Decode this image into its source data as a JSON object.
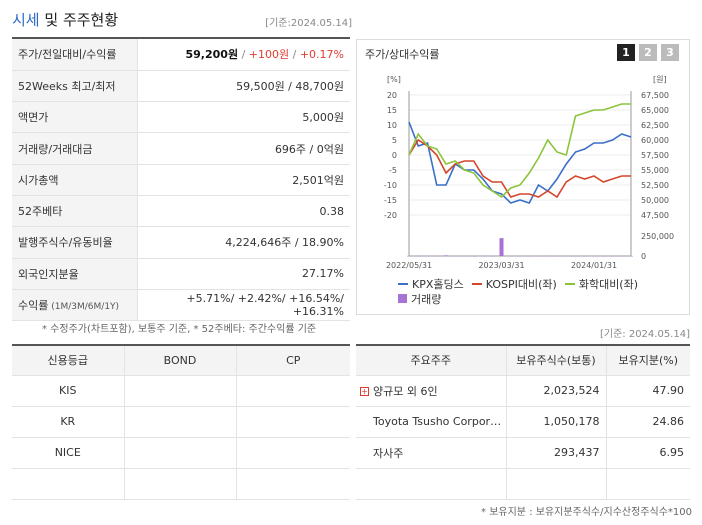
{
  "header": {
    "title_accent": "시세",
    "title_rest": " 및 주주현황",
    "date": "[기준:2024.05.14]"
  },
  "stats": [
    {
      "label": "주가/전일대비/수익률",
      "v1": "59,200원",
      "sep1": " / ",
      "v2": "+100원",
      "sep2": " / ",
      "v3": "+0.17%"
    },
    {
      "label": "52Weeks 최고/최저",
      "value": "59,500원 / 48,700원"
    },
    {
      "label": "액면가",
      "value": "5,000원"
    },
    {
      "label": "거래량/거래대금",
      "value": "696주 / 0억원"
    },
    {
      "label": "시가총액",
      "value": "2,501억원"
    },
    {
      "label": "52주베타",
      "value": "0.38"
    },
    {
      "label": "발행주식수/유동비율",
      "value": "4,224,646주 / 18.90%"
    },
    {
      "label": "외국인지분율",
      "value": "27.17%"
    },
    {
      "label": "수익률",
      "label_small": " (1M/3M/6M/1Y)",
      "value": "+5.71%/ +2.42%/ +16.54%/ +16.31%"
    }
  ],
  "notes": {
    "note1": "* 수정주가(차트포함), 보통주 기준, * 52주베타: 주간수익률 기준",
    "date2": "[기준: 2024.05.14]",
    "note3": "* 보유지분 : 보유지분주식수/지수산정주식수*100"
  },
  "chart_panel": {
    "title": "주가/상대수익률",
    "pages": [
      "1",
      "2",
      "3"
    ]
  },
  "chart_data": {
    "type": "line",
    "x": [
      "2022/05",
      "2022/06",
      "2022/07",
      "2022/08",
      "2022/09",
      "2022/10",
      "2022/11",
      "2022/12",
      "2023/01",
      "2023/02",
      "2023/03",
      "2023/04",
      "2023/05",
      "2023/06",
      "2023/07",
      "2023/08",
      "2023/09",
      "2023/10",
      "2023/11",
      "2023/12",
      "2024/01",
      "2024/02",
      "2024/03",
      "2024/04",
      "2024/05"
    ],
    "x_ticks": [
      "2022/05/31",
      "2023/03/31",
      "2024/01/31"
    ],
    "left_axis": {
      "unit": "[%]",
      "ylim": [
        -20,
        20
      ],
      "ticks": [
        "20",
        "15",
        "10",
        "5",
        "0",
        "-5",
        "-10",
        "-15",
        "-20"
      ]
    },
    "right_axis": {
      "unit": "[원]",
      "ylim": [
        47500,
        67500
      ],
      "ticks": [
        "67,500",
        "65,000",
        "62,500",
        "60,000",
        "57,500",
        "55,000",
        "52,500",
        "50,000",
        "47,500"
      ]
    },
    "volume_axis": {
      "ticks": [
        "250,000",
        "0"
      ],
      "ylim": [
        0,
        320000
      ]
    },
    "series": [
      {
        "name": "KPX홀딩스",
        "color": "#3a6fc9",
        "values": [
          11,
          3,
          4,
          -10,
          -10,
          -3,
          -5,
          -5,
          -8,
          -12,
          -13,
          -16,
          -15,
          -16,
          -10,
          -12,
          -8,
          -3,
          1,
          2,
          4,
          4,
          5,
          7,
          6
        ]
      },
      {
        "name": "KOSPI대비(좌)",
        "color": "#d4462b",
        "values": [
          0,
          5,
          3,
          0,
          -6,
          -3,
          -2,
          -2,
          -7,
          -9,
          -9,
          -14,
          -13,
          -13,
          -14,
          -12,
          -14,
          -9,
          -7,
          -8,
          -7,
          -9,
          -8,
          -7,
          -7
        ]
      },
      {
        "name": "화학대비(좌)",
        "color": "#8cc43a",
        "values": [
          0,
          7,
          3,
          2,
          -3,
          -2,
          -5,
          -6,
          -10,
          -12,
          -14,
          -11,
          -10,
          -6,
          -1,
          5,
          1,
          0,
          13,
          14,
          15,
          15,
          16,
          17,
          17
        ]
      }
    ],
    "volume": {
      "name": "거래량",
      "color": "#a773d4",
      "values": [
        2000,
        3000,
        1500,
        1000,
        8000,
        2000,
        1000,
        1500,
        3000,
        1000,
        220000,
        2000,
        1500,
        1000,
        1000,
        2000,
        1000,
        1500,
        1000,
        1000,
        1500,
        1000,
        2000,
        1000,
        1500
      ]
    }
  },
  "credit_table": {
    "headers": [
      "신용등급",
      "BOND",
      "CP"
    ],
    "rows": [
      [
        "KIS",
        "",
        ""
      ],
      [
        "KR",
        "",
        ""
      ],
      [
        "NICE",
        "",
        ""
      ],
      [
        "",
        "",
        ""
      ]
    ]
  },
  "holders_table": {
    "headers": [
      "주요주주",
      "보유주식수(보통)",
      "보유지분(%)"
    ],
    "rows": [
      {
        "name": "양규모 외 6인",
        "shares": "2,023,524",
        "pct": "47.90",
        "expand": "+"
      },
      {
        "name": "Toyota Tsusho Corpor…",
        "shares": "1,050,178",
        "pct": "24.86",
        "expand": ""
      },
      {
        "name": "자사주",
        "shares": "293,437",
        "pct": "6.95",
        "expand": ""
      }
    ]
  }
}
